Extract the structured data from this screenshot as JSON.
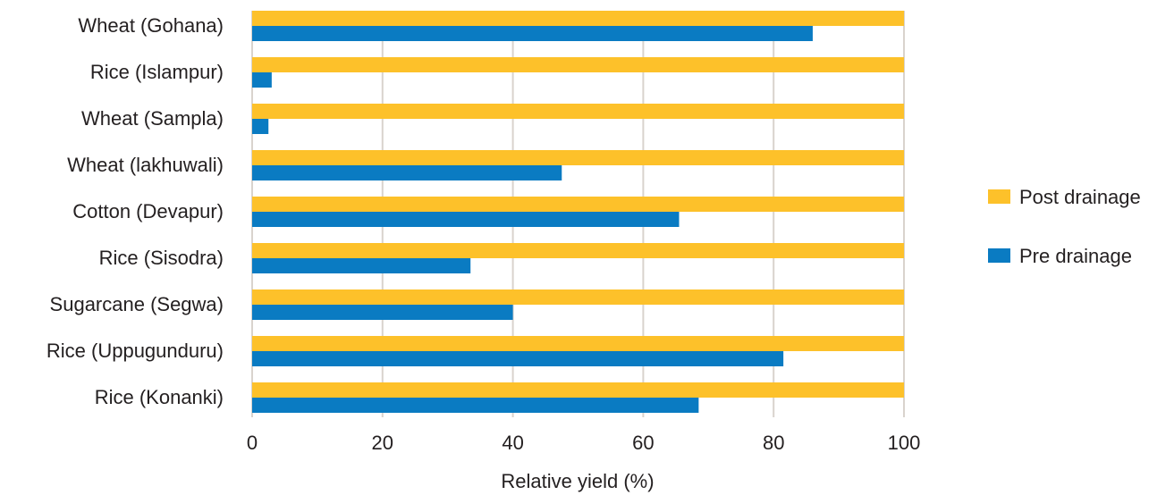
{
  "chart_data": {
    "type": "bar",
    "orientation": "horizontal",
    "categories": [
      "Wheat (Gohana)",
      "Rice (Islampur)",
      "Wheat (Sampla)",
      "Wheat (lakhuwali)",
      "Cotton (Devapur)",
      "Rice (Sisodra)",
      "Sugarcane (Segwa)",
      "Rice (Uppugunduru)",
      "Rice (Konanki)"
    ],
    "series": [
      {
        "name": "Post drainage",
        "color": "#fdc12a",
        "values": [
          100,
          100,
          100,
          100,
          100,
          100,
          100,
          100,
          100
        ]
      },
      {
        "name": "Pre drainage",
        "color": "#0a7bc2",
        "values": [
          86,
          3,
          2.5,
          47.5,
          65.5,
          33.5,
          40,
          81.5,
          68.5
        ]
      }
    ],
    "xlabel": "Relative yield (%)",
    "ylabel": "",
    "xlim": [
      0,
      100
    ],
    "xticks": [
      "0",
      "20",
      "40",
      "60",
      "80",
      "100"
    ],
    "grid": "vertical",
    "legend_position": "right",
    "gridline_color": "#d9d3cd"
  }
}
